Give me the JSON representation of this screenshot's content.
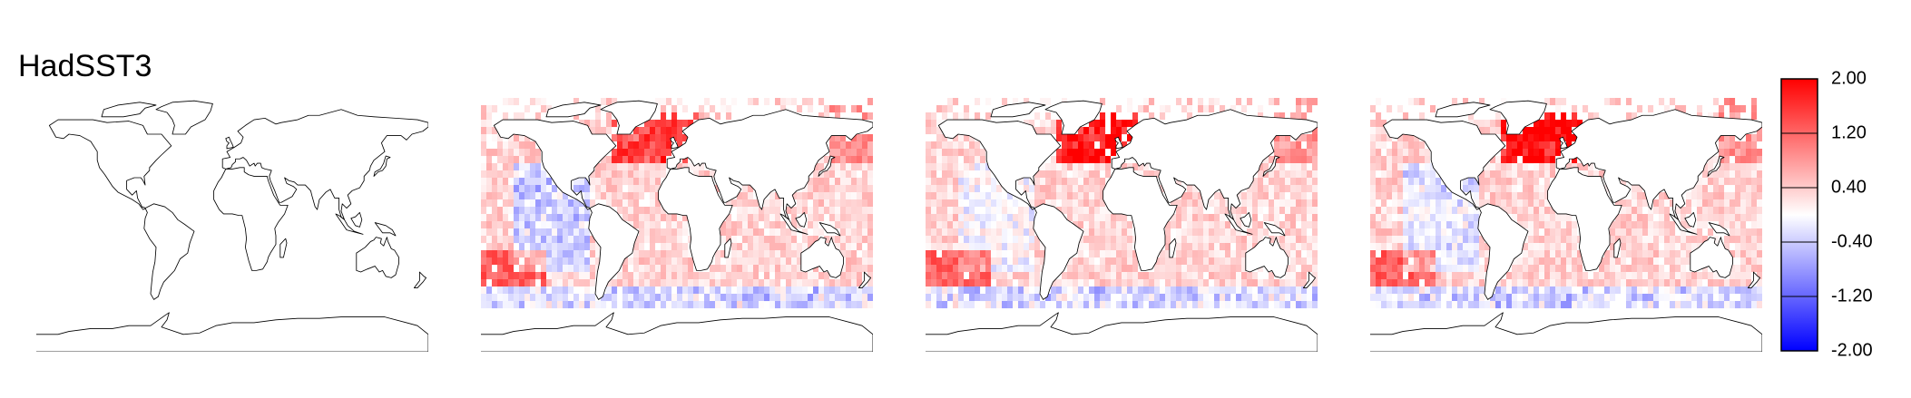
{
  "title": "HadSST3",
  "panels": [
    {
      "id": "panel-1",
      "has_data": false
    },
    {
      "id": "panel-2",
      "has_data": true,
      "seed": 11,
      "north_atlantic_warm": 1.3,
      "east_pacific": -0.9
    },
    {
      "id": "panel-3",
      "has_data": true,
      "seed": 23,
      "north_atlantic_warm": 1.8,
      "east_pacific": -0.5
    },
    {
      "id": "panel-4",
      "has_data": true,
      "seed": 37,
      "north_atlantic_warm": 1.9,
      "east_pacific": -0.7
    }
  ],
  "colorbar": {
    "range": [
      -2.0,
      2.0
    ],
    "ticks": [
      "2.00",
      "1.20",
      "0.40",
      "-0.40",
      "-1.20",
      "-2.00"
    ],
    "colors": {
      "low": "#0000ff",
      "mid": "#ffffff",
      "high": "#ff0000"
    }
  }
}
